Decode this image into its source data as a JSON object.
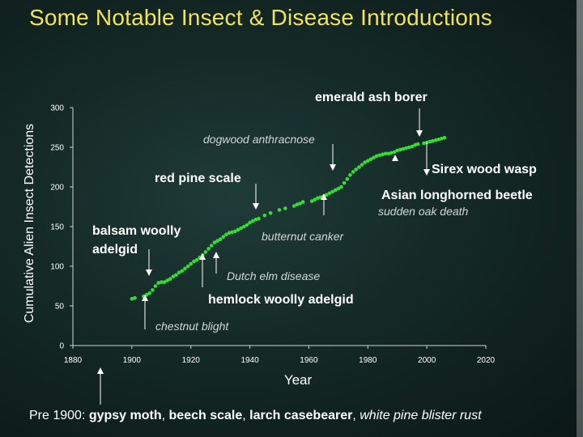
{
  "title": "Some Notable Insect & Disease Introductions",
  "footer": {
    "prefix": "Pre 1900: ",
    "pest1": "gypsy moth",
    "sep1": ", ",
    "pest2": "beech scale",
    "sep2": ", ",
    "pest3": "larch casebearer",
    "sep3": ", ",
    "disease1": "white pine blister rust"
  },
  "chart_data": {
    "type": "scatter",
    "title": "",
    "xlabel": "Year",
    "ylabel": "Cumulative Alien Insect Detections",
    "xlim": [
      1880,
      2020
    ],
    "ylim": [
      0,
      300
    ],
    "xticks": [
      1880,
      1900,
      1920,
      1940,
      1960,
      1980,
      2000,
      2020
    ],
    "yticks": [
      0,
      50,
      100,
      150,
      200,
      250,
      300
    ],
    "grid": false,
    "legend": "none",
    "series": [
      {
        "color": "#33dd33",
        "points": [
          [
            1900,
            59
          ],
          [
            1901,
            60
          ],
          [
            1904,
            62
          ],
          [
            1905,
            64
          ],
          [
            1906,
            66
          ],
          [
            1907,
            70
          ],
          [
            1908,
            75
          ],
          [
            1909,
            79
          ],
          [
            1910,
            80
          ],
          [
            1911,
            80
          ],
          [
            1912,
            82
          ],
          [
            1913,
            84
          ],
          [
            1914,
            87
          ],
          [
            1915,
            89
          ],
          [
            1916,
            92
          ],
          [
            1917,
            94
          ],
          [
            1918,
            97
          ],
          [
            1919,
            100
          ],
          [
            1920,
            103
          ],
          [
            1921,
            106
          ],
          [
            1922,
            108
          ],
          [
            1923,
            111
          ],
          [
            1924,
            114
          ],
          [
            1925,
            118
          ],
          [
            1926,
            122
          ],
          [
            1927,
            126
          ],
          [
            1928,
            130
          ],
          [
            1929,
            132
          ],
          [
            1930,
            134
          ],
          [
            1931,
            137
          ],
          [
            1932,
            140
          ],
          [
            1933,
            142
          ],
          [
            1934,
            143
          ],
          [
            1935,
            144
          ],
          [
            1936,
            146
          ],
          [
            1937,
            148
          ],
          [
            1938,
            150
          ],
          [
            1939,
            152
          ],
          [
            1940,
            155
          ],
          [
            1941,
            157
          ],
          [
            1942,
            159
          ],
          [
            1943,
            160
          ],
          [
            1945,
            164
          ],
          [
            1947,
            167
          ],
          [
            1950,
            171
          ],
          [
            1952,
            173
          ],
          [
            1955,
            176
          ],
          [
            1956,
            178
          ],
          [
            1957,
            179
          ],
          [
            1958,
            181
          ],
          [
            1961,
            182
          ],
          [
            1962,
            184
          ],
          [
            1963,
            186
          ],
          [
            1964,
            187
          ],
          [
            1965,
            188
          ],
          [
            1966,
            190
          ],
          [
            1967,
            192
          ],
          [
            1968,
            194
          ],
          [
            1969,
            196
          ],
          [
            1970,
            198
          ],
          [
            1971,
            200
          ],
          [
            1972,
            205
          ],
          [
            1973,
            210
          ],
          [
            1974,
            215
          ],
          [
            1975,
            219
          ],
          [
            1976,
            222
          ],
          [
            1977,
            225
          ],
          [
            1978,
            228
          ],
          [
            1979,
            231
          ],
          [
            1980,
            233
          ],
          [
            1981,
            235
          ],
          [
            1982,
            237
          ],
          [
            1983,
            239
          ],
          [
            1984,
            240
          ],
          [
            1985,
            241
          ],
          [
            1986,
            242
          ],
          [
            1987,
            242
          ],
          [
            1988,
            243
          ],
          [
            1989,
            244
          ],
          [
            1990,
            246
          ],
          [
            1991,
            247
          ],
          [
            1992,
            248
          ],
          [
            1993,
            249
          ],
          [
            1994,
            250
          ],
          [
            1995,
            251
          ],
          [
            1996,
            253
          ],
          [
            1997,
            254
          ],
          [
            1999,
            255
          ],
          [
            2000,
            256
          ],
          [
            2001,
            257
          ],
          [
            2002,
            258
          ],
          [
            2003,
            259
          ],
          [
            2004,
            260
          ],
          [
            2005,
            261
          ],
          [
            2006,
            262
          ]
        ]
      }
    ],
    "annotations": [
      {
        "text": "emerald ash borer",
        "style": "bold"
      },
      {
        "text": "dogwood anthracnose",
        "style": "italic"
      },
      {
        "text": "Sirex wood wasp",
        "style": "bold"
      },
      {
        "text": "red pine scale",
        "style": "bold"
      },
      {
        "text": "Asian longhorned beetle",
        "style": "bold"
      },
      {
        "text": "sudden oak death",
        "style": "italic"
      },
      {
        "text": "balsam woolly",
        "style": "bold"
      },
      {
        "text": "adelgid",
        "style": "bold"
      },
      {
        "text": "butternut canker",
        "style": "italic"
      },
      {
        "text": "Dutch elm disease",
        "style": "italic"
      },
      {
        "text": "hemlock woolly adelgid",
        "style": "bold"
      },
      {
        "text": "chestnut blight",
        "style": "italic"
      }
    ]
  }
}
